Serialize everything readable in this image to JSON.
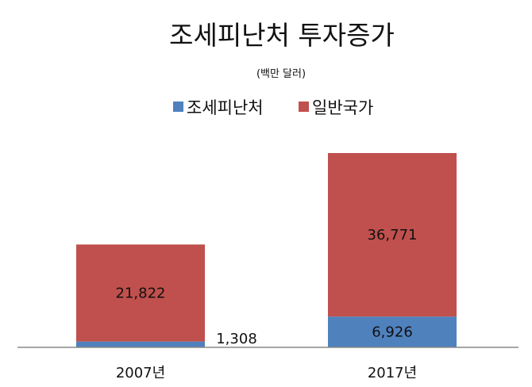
{
  "chart_data": {
    "type": "bar",
    "stacked": true,
    "title": "조세피난처 투자증가",
    "subtitle": "(백만 달러)",
    "categories": [
      "2007년",
      "2017년"
    ],
    "series": [
      {
        "name": "조세피난처",
        "values": [
          1308,
          6926
        ],
        "labels": [
          "1,308",
          "6,926"
        ],
        "color": "#4F81BD"
      },
      {
        "name": "일반국가",
        "values": [
          21822,
          36771
        ],
        "labels": [
          "21,822",
          "36,771"
        ],
        "color": "#C0504D"
      }
    ],
    "legend_position": "top",
    "grid": false,
    "axis_color": "#888888"
  }
}
